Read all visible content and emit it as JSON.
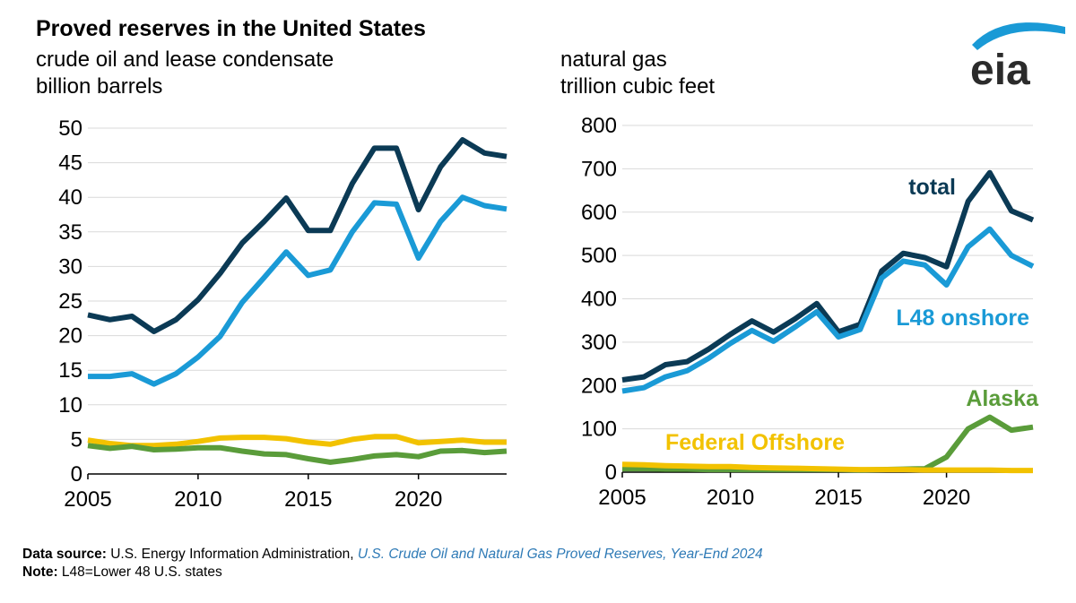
{
  "header": {
    "title": "Proved reserves in the United States",
    "oil_subtitle_1": "crude oil and lease condensate",
    "oil_subtitle_2": "billion barrels",
    "gas_subtitle_1": "natural gas",
    "gas_subtitle_2": "trillion cubic feet",
    "logo_text": "eia"
  },
  "footer": {
    "source_label": "Data source:",
    "source_text": "U.S. Energy Information Administration,",
    "source_publication": "U.S. Crude Oil and Natural Gas Proved Reserves, Year-End 2024",
    "note_label": "Note:",
    "note_text": "L48=Lower 48 U.S. states"
  },
  "colors": {
    "total": "#0b3a55",
    "l48_onshore": "#1a9ad6",
    "alaska": "#5a9c3a",
    "federal_offshore": "#f2c200",
    "grid": "#d9d9d9"
  },
  "chart_data": [
    {
      "type": "line",
      "x": [
        2005,
        2006,
        2007,
        2008,
        2009,
        2010,
        2011,
        2012,
        2013,
        2014,
        2015,
        2016,
        2017,
        2018,
        2019,
        2020,
        2021,
        2022,
        2023,
        2024
      ],
      "xticks": [
        2005,
        2010,
        2015,
        2020
      ],
      "xlim": [
        2005,
        2024
      ],
      "ylim": [
        0,
        50
      ],
      "yticks": [
        0,
        5,
        10,
        15,
        20,
        25,
        30,
        35,
        40,
        45,
        50
      ],
      "grid": true,
      "legend": "none",
      "series": [
        {
          "key": "total",
          "values": [
            23.0,
            22.3,
            22.8,
            20.6,
            22.3,
            25.2,
            29.0,
            33.4,
            36.5,
            39.9,
            35.2,
            35.2,
            42.0,
            47.1,
            47.1,
            38.2,
            44.4,
            48.3,
            46.4,
            45.9
          ]
        },
        {
          "key": "l48_onshore",
          "values": [
            14.1,
            14.1,
            14.5,
            13.0,
            14.5,
            16.9,
            19.9,
            24.8,
            28.4,
            32.1,
            28.7,
            29.5,
            35.0,
            39.2,
            39.0,
            31.2,
            36.5,
            40.0,
            38.8,
            38.3
          ]
        },
        {
          "key": "federal_offshore",
          "values": [
            4.9,
            4.4,
            4.1,
            4.1,
            4.3,
            4.7,
            5.2,
            5.3,
            5.3,
            5.1,
            4.6,
            4.3,
            5.0,
            5.4,
            5.4,
            4.5,
            4.7,
            4.9,
            4.6,
            4.6
          ]
        },
        {
          "key": "alaska",
          "values": [
            4.1,
            3.7,
            4.0,
            3.5,
            3.6,
            3.8,
            3.8,
            3.3,
            2.9,
            2.8,
            2.2,
            1.7,
            2.1,
            2.6,
            2.8,
            2.5,
            3.3,
            3.4,
            3.1,
            3.3
          ]
        }
      ]
    },
    {
      "type": "line",
      "x": [
        2005,
        2006,
        2007,
        2008,
        2009,
        2010,
        2011,
        2012,
        2013,
        2014,
        2015,
        2016,
        2017,
        2018,
        2019,
        2020,
        2021,
        2022,
        2023,
        2024
      ],
      "xticks": [
        2005,
        2010,
        2015,
        2020
      ],
      "xlim": [
        2005,
        2024
      ],
      "ylim": [
        0,
        800
      ],
      "yticks": [
        0,
        100,
        200,
        300,
        400,
        500,
        600,
        700,
        800
      ],
      "grid": true,
      "legend": "inline labels",
      "series": [
        {
          "key": "total",
          "name": "total",
          "values": [
            213,
            220,
            248,
            255,
            284,
            318,
            349,
            323,
            354,
            389,
            324,
            341,
            464,
            505,
            495,
            474,
            625,
            691,
            603,
            582
          ]
        },
        {
          "key": "l48_onshore",
          "name": "L48 onshore",
          "values": [
            187,
            195,
            220,
            234,
            263,
            297,
            327,
            302,
            335,
            370,
            312,
            329,
            448,
            487,
            478,
            432,
            520,
            561,
            500,
            475
          ]
        },
        {
          "key": "alaska",
          "name": "Alaska",
          "values": [
            8,
            8,
            7,
            7,
            6,
            6,
            6,
            6,
            6,
            6,
            6,
            5,
            6,
            7,
            8,
            35,
            100,
            127,
            97,
            104
          ]
        },
        {
          "key": "federal_offshore",
          "name": "Federal Offshore",
          "values": [
            18,
            17,
            15,
            14,
            13,
            13,
            11,
            10,
            9,
            8,
            7,
            6,
            6,
            6,
            5,
            5,
            5,
            5,
            4,
            4
          ]
        }
      ]
    }
  ]
}
